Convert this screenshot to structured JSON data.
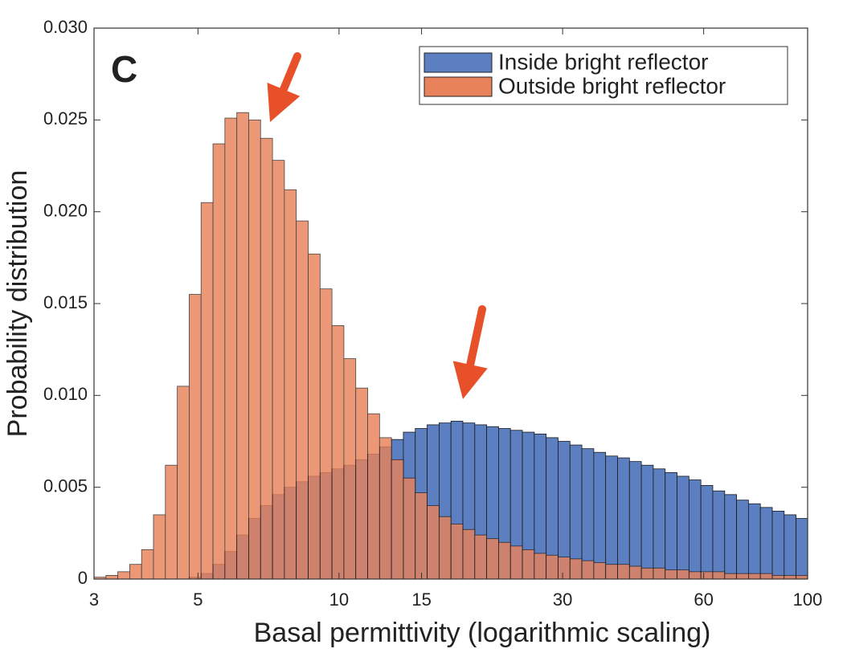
{
  "chart_data": {
    "type": "histogram",
    "panel_label": "C",
    "x_label": "Basal permittivity (logarithmic scaling)",
    "y_label": "Probability distribution",
    "xscale": "log",
    "xlim": [
      3,
      100
    ],
    "xticks": [
      3,
      5,
      10,
      15,
      30,
      60,
      100
    ],
    "ylim": [
      0,
      0.03
    ],
    "yticks": [
      0,
      0.005,
      {
        "value": 0.01,
        "label": "0.010"
      },
      0.015,
      {
        "value": 0.02,
        "label": "0.020"
      },
      0.025,
      {
        "value": 0.03,
        "label": "0.030"
      }
    ],
    "legend": "upper right",
    "bins": [
      3,
      3.181,
      3.372,
      3.575,
      3.79,
      4.018,
      4.26,
      4.517,
      4.789,
      5.077,
      5.383,
      5.707,
      6.051,
      6.415,
      6.801,
      7.211,
      7.645,
      8.105,
      8.593,
      9.111,
      9.659,
      10.241,
      10.857,
      11.511,
      12.204,
      12.939,
      13.718,
      14.544,
      15.42,
      16.349,
      17.333,
      18.377,
      19.484,
      20.657,
      21.901,
      23.22,
      24.618,
      26.101,
      27.672,
      29.339,
      31.106,
      32.979,
      34.965,
      37.07,
      39.303,
      41.67,
      44.179,
      46.84,
      49.66,
      52.651,
      55.821,
      59.183,
      62.747,
      66.526,
      70.532,
      74.779,
      79.282,
      84.057,
      89.118,
      94.485,
      100
    ],
    "series": [
      {
        "name": "Inside bright reflector",
        "color": "#5b7fc0",
        "values": [
          0,
          0,
          0,
          0,
          0,
          0,
          0,
          0,
          0.0001,
          0.0003,
          0.0008,
          0.0015,
          0.0024,
          0.0033,
          0.004,
          0.0046,
          0.005,
          0.0053,
          0.0056,
          0.0058,
          0.006,
          0.0062,
          0.0065,
          0.0068,
          0.0072,
          0.0076,
          0.008,
          0.0082,
          0.0084,
          0.0085,
          0.0086,
          0.0085,
          0.0084,
          0.0083,
          0.0082,
          0.0081,
          0.008,
          0.0079,
          0.0077,
          0.0075,
          0.0073,
          0.0071,
          0.0069,
          0.0067,
          0.0066,
          0.0064,
          0.0062,
          0.006,
          0.0058,
          0.0056,
          0.0054,
          0.0051,
          0.0048,
          0.0046,
          0.0043,
          0.0041,
          0.0039,
          0.0037,
          0.0035,
          0.0033
        ]
      },
      {
        "name": "Outside bright reflector",
        "color": "#e8825a",
        "values": [
          0.0001,
          0.0002,
          0.0004,
          0.0008,
          0.0016,
          0.0035,
          0.0062,
          0.0105,
          0.0155,
          0.0205,
          0.0237,
          0.0251,
          0.0254,
          0.025,
          0.024,
          0.0228,
          0.0212,
          0.0195,
          0.0177,
          0.0158,
          0.0138,
          0.012,
          0.0104,
          0.009,
          0.0077,
          0.0065,
          0.0055,
          0.0047,
          0.004,
          0.0034,
          0.003,
          0.0027,
          0.0024,
          0.0022,
          0.002,
          0.0018,
          0.0016,
          0.0014,
          0.0013,
          0.0012,
          0.0011,
          0.001,
          0.0009,
          0.0008,
          0.0008,
          0.0007,
          0.0006,
          0.0006,
          0.0005,
          0.0005,
          0.0004,
          0.0004,
          0.0004,
          0.0003,
          0.0003,
          0.0003,
          0.0003,
          0.0002,
          0.0002,
          0.0002
        ]
      }
    ]
  }
}
